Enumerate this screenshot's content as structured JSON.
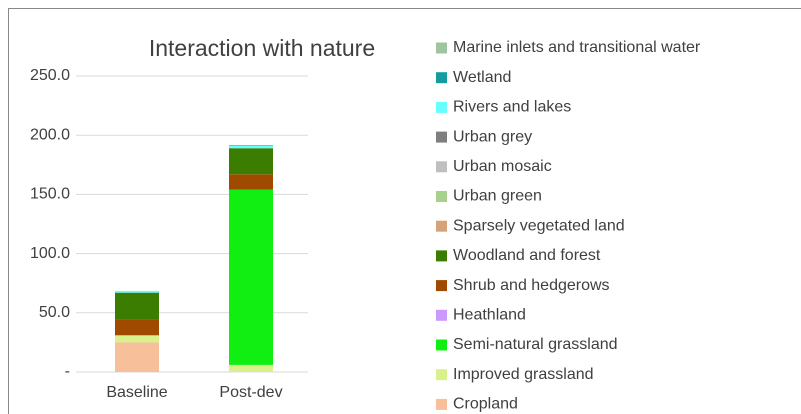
{
  "chart_data": {
    "type": "stacked_bar",
    "title": "Interaction with nature",
    "categories": [
      "Baseline",
      "Post-dev"
    ],
    "ylim": [
      0,
      250
    ],
    "yticks": [
      {
        "value": 0,
        "label": "-"
      },
      {
        "value": 50,
        "label": "50.0"
      },
      {
        "value": 100,
        "label": "100.0"
      },
      {
        "value": 150,
        "label": "150.0"
      },
      {
        "value": 200,
        "label": "200.0"
      },
      {
        "value": 250,
        "label": "250.0"
      }
    ],
    "grid": true,
    "legend": "right",
    "series": [
      {
        "name": "Cropland",
        "color": "#f8c09a",
        "values": [
          25,
          0
        ]
      },
      {
        "name": "Improved grassland",
        "color": "#d9f08b",
        "values": [
          6,
          6
        ]
      },
      {
        "name": "Semi-natural grassland",
        "color": "#11ee11",
        "values": [
          0,
          148
        ]
      },
      {
        "name": "Heathland",
        "color": "#cc99ff",
        "values": [
          0,
          0
        ]
      },
      {
        "name": "Shrub and hedgerows",
        "color": "#a04a00",
        "values": [
          13,
          13
        ]
      },
      {
        "name": "Woodland and forest",
        "color": "#3a7d00",
        "values": [
          23,
          22
        ]
      },
      {
        "name": "Sparsely vegetated land",
        "color": "#d5a27a",
        "values": [
          0,
          0
        ]
      },
      {
        "name": "Urban green",
        "color": "#a9d18e",
        "values": [
          0,
          0
        ]
      },
      {
        "name": "Urban mosaic",
        "color": "#bfbfbf",
        "values": [
          0,
          0
        ]
      },
      {
        "name": "Urban grey",
        "color": "#7f7f7f",
        "values": [
          0,
          0
        ]
      },
      {
        "name": "Rivers and lakes",
        "color": "#66ffff",
        "values": [
          1.5,
          2
        ]
      },
      {
        "name": "Wetland",
        "color": "#169c9c",
        "values": [
          0,
          0.5
        ]
      },
      {
        "name": "Marine inlets and transitional water",
        "color": "#9fc49f",
        "values": [
          0,
          0
        ]
      }
    ]
  }
}
